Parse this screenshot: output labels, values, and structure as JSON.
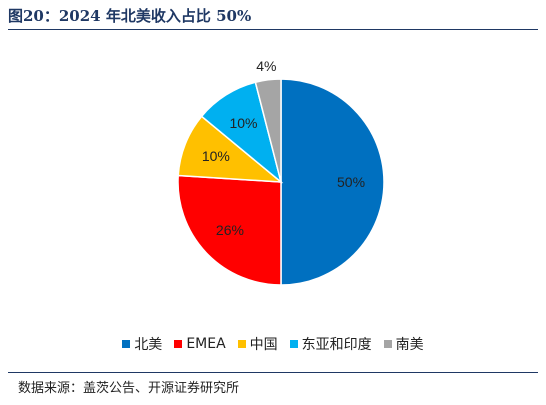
{
  "header": {
    "title": "图20：2024 年北美收入占比 50%"
  },
  "chart_data": {
    "type": "pie",
    "title": "",
    "categories": [
      "北美",
      "EMEA",
      "中国",
      "东亚和印度",
      "南美"
    ],
    "values": [
      50,
      26,
      10,
      10,
      4
    ],
    "labels": [
      "50%",
      "26%",
      "10%",
      "10%",
      "4%"
    ],
    "colors": [
      "#0070c0",
      "#ff0000",
      "#ffc000",
      "#00b0f0",
      "#a5a5a5"
    ],
    "start_angle_deg": 0,
    "direction": "clockwise",
    "legend_position": "bottom"
  },
  "footer": {
    "source": "数据来源：盖茨公告、开源证券研究所"
  }
}
